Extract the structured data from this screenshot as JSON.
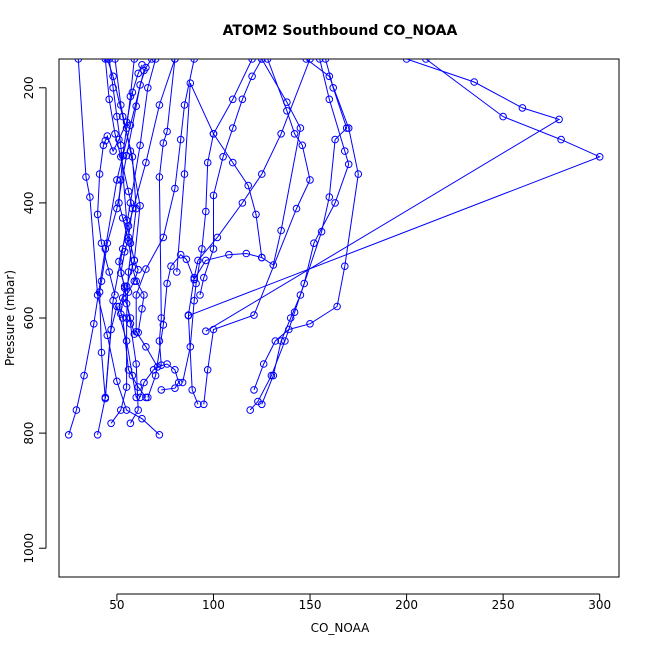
{
  "chart_data": {
    "type": "line",
    "title": "ATOM2 Southbound CO_NOAA",
    "xlabel": "CO_NOAA",
    "ylabel": "Pressure (mbar)",
    "xlim": [
      20,
      310
    ],
    "ylim": [
      1050,
      150
    ],
    "y_reversed": true,
    "grid": false,
    "x_ticks": [
      50,
      100,
      150,
      200,
      250,
      300
    ],
    "y_ticks": [
      200,
      400,
      600,
      800,
      1000
    ],
    "series_color": "#0000ff",
    "marker": "open-circle",
    "profiles": [
      [
        [
          25,
          803
        ],
        [
          29,
          760
        ],
        [
          33,
          700
        ],
        [
          38,
          610
        ],
        [
          44,
          480
        ],
        [
          50,
          360
        ],
        [
          57,
          265
        ],
        [
          64,
          170
        ],
        [
          68,
          150
        ]
      ],
      [
        [
          40,
          803
        ],
        [
          44,
          738
        ],
        [
          48,
          570
        ],
        [
          53,
          480
        ],
        [
          57,
          400
        ],
        [
          62,
          300
        ],
        [
          66,
          200
        ],
        [
          70,
          150
        ]
      ],
      [
        [
          72,
          803
        ],
        [
          63,
          775
        ],
        [
          55,
          760
        ],
        [
          50,
          710
        ],
        [
          45,
          630
        ],
        [
          40,
          560
        ],
        [
          36,
          390
        ],
        [
          34,
          355
        ],
        [
          30,
          150
        ]
      ],
      [
        [
          47,
          783
        ],
        [
          52,
          760
        ],
        [
          55,
          720
        ],
        [
          55,
          600
        ],
        [
          56,
          520
        ],
        [
          60,
          410
        ],
        [
          58,
          320
        ],
        [
          53,
          250
        ],
        [
          48,
          180
        ],
        [
          45,
          150
        ]
      ],
      [
        [
          57,
          783
        ],
        [
          61,
          760
        ],
        [
          60,
          680
        ],
        [
          57,
          610
        ],
        [
          54,
          548
        ],
        [
          51,
          502
        ],
        [
          56,
          440
        ],
        [
          65,
          330
        ],
        [
          72,
          230
        ],
        [
          80,
          150
        ]
      ],
      [
        [
          65,
          738
        ],
        [
          61,
          720
        ],
        [
          56,
          690
        ],
        [
          53,
          600
        ],
        [
          51,
          580
        ],
        [
          55,
          545
        ],
        [
          59,
          500
        ],
        [
          62,
          405
        ],
        [
          57,
          310
        ],
        [
          52,
          230
        ],
        [
          49,
          150
        ]
      ],
      [
        [
          73,
          725
        ],
        [
          80,
          722
        ],
        [
          82,
          712
        ],
        [
          80,
          690
        ],
        [
          76,
          680
        ],
        [
          71,
          685
        ],
        [
          65,
          650
        ],
        [
          60,
          624
        ],
        [
          60,
          560
        ],
        [
          65,
          515
        ],
        [
          74,
          460
        ],
        [
          80,
          375
        ],
        [
          83,
          290
        ],
        [
          85,
          230
        ],
        [
          90,
          150
        ]
      ],
      [
        [
          92,
          750
        ],
        [
          89,
          725
        ],
        [
          87,
          595
        ],
        [
          90,
          530
        ],
        [
          92,
          500
        ],
        [
          102,
          460
        ],
        [
          115,
          400
        ],
        [
          125,
          350
        ],
        [
          135,
          280
        ],
        [
          150,
          150
        ]
      ],
      [
        [
          95,
          750
        ],
        [
          97,
          690
        ],
        [
          100,
          620
        ],
        [
          121,
          595
        ],
        [
          143,
          410
        ],
        [
          150,
          360
        ],
        [
          146,
          300
        ],
        [
          142,
          280
        ],
        [
          138,
          240
        ],
        [
          128,
          150
        ]
      ],
      [
        [
          119,
          760
        ],
        [
          123,
          745
        ],
        [
          130,
          700
        ],
        [
          137,
          640
        ],
        [
          142,
          590
        ],
        [
          147,
          540
        ],
        [
          152,
          470
        ],
        [
          163,
          400
        ],
        [
          170,
          333
        ],
        [
          168,
          310
        ],
        [
          160,
          220
        ],
        [
          155,
          150
        ]
      ],
      [
        [
          125,
          750
        ],
        [
          131,
          700
        ],
        [
          135,
          640
        ],
        [
          140,
          600
        ],
        [
          145,
          560
        ],
        [
          156,
          450
        ],
        [
          160,
          390
        ],
        [
          163,
          290
        ],
        [
          169,
          270
        ],
        [
          162,
          200
        ],
        [
          158,
          150
        ]
      ],
      [
        [
          121,
          725
        ],
        [
          126,
          680
        ],
        [
          132,
          640
        ],
        [
          139,
          620
        ],
        [
          150,
          610
        ],
        [
          164,
          580
        ],
        [
          168,
          510
        ],
        [
          175,
          350
        ],
        [
          170,
          270
        ],
        [
          160,
          180
        ],
        [
          148,
          150
        ]
      ],
      [
        [
          90,
          533
        ],
        [
          96,
          500
        ],
        [
          108,
          490
        ],
        [
          117,
          488
        ],
        [
          125,
          495
        ],
        [
          131,
          508
        ],
        [
          135,
          448
        ],
        [
          145,
          270
        ],
        [
          138,
          225
        ],
        [
          125,
          150
        ]
      ],
      [
        [
          96,
          623
        ],
        [
          279,
          255
        ],
        [
          260,
          235
        ],
        [
          235,
          190
        ],
        [
          200,
          150
        ]
      ],
      [
        [
          87,
          596
        ],
        [
          300,
          320
        ],
        [
          280,
          290
        ],
        [
          250,
          250
        ],
        [
          210,
          150
        ]
      ],
      [
        [
          81,
          520
        ],
        [
          85,
          350
        ],
        [
          88,
          192
        ],
        [
          100,
          280
        ],
        [
          110,
          330
        ],
        [
          118,
          370
        ],
        [
          122,
          420
        ],
        [
          125,
          495
        ]
      ],
      [
        [
          66,
          738
        ],
        [
          70,
          700
        ],
        [
          74,
          612
        ],
        [
          76,
          540
        ],
        [
          78,
          510
        ],
        [
          83,
          490
        ],
        [
          86,
          498
        ],
        [
          90,
          533
        ]
      ],
      [
        [
          62,
          738
        ],
        [
          64,
          712
        ],
        [
          69,
          690
        ],
        [
          73,
          682
        ],
        [
          72,
          640
        ],
        [
          73,
          600
        ],
        [
          72,
          355
        ],
        [
          74,
          296
        ],
        [
          76,
          276
        ],
        [
          80,
          150
        ]
      ],
      [
        [
          60,
          738
        ],
        [
          58,
          700
        ],
        [
          55,
          640
        ],
        [
          50,
          580
        ],
        [
          47,
          620
        ],
        [
          44,
          740
        ],
        [
          42,
          660
        ],
        [
          41,
          555
        ],
        [
          42,
          536
        ],
        [
          45,
          470
        ],
        [
          50,
          410
        ],
        [
          55,
          318
        ],
        [
          60,
          232
        ],
        [
          62,
          195
        ],
        [
          65,
          165
        ]
      ],
      [
        [
          49,
          560
        ],
        [
          46,
          520
        ],
        [
          42,
          470
        ],
        [
          40,
          420
        ],
        [
          41,
          350
        ],
        [
          43,
          300
        ],
        [
          44,
          292
        ],
        [
          45,
          284
        ],
        [
          48,
          310
        ],
        [
          51,
          290
        ],
        [
          55,
          260
        ],
        [
          58,
          208
        ],
        [
          61,
          175
        ],
        [
          63,
          160
        ]
      ],
      [
        [
          52,
          593
        ],
        [
          54,
          545
        ],
        [
          52,
          522
        ],
        [
          54,
          485
        ],
        [
          56,
          460
        ],
        [
          58,
          410
        ],
        [
          56,
          380
        ],
        [
          52,
          320
        ],
        [
          49,
          280
        ],
        [
          46,
          220
        ],
        [
          44,
          150
        ]
      ],
      [
        [
          59,
          628
        ],
        [
          57,
          600
        ],
        [
          55,
          575
        ],
        [
          53,
          565
        ],
        [
          56,
          555
        ],
        [
          59,
          536
        ],
        [
          61,
          516
        ],
        [
          59,
          500
        ],
        [
          57,
          470
        ],
        [
          55,
          430
        ],
        [
          52,
          300
        ],
        [
          50,
          250
        ],
        [
          48,
          200
        ],
        [
          46,
          150
        ]
      ],
      [
        [
          61,
          625
        ],
        [
          63,
          584
        ],
        [
          64,
          560
        ],
        [
          60,
          536
        ],
        [
          58,
          512
        ],
        [
          56,
          466
        ],
        [
          53,
          426
        ],
        [
          51,
          400
        ],
        [
          52,
          360
        ],
        [
          53,
          318
        ],
        [
          55,
          270
        ],
        [
          57,
          215
        ],
        [
          59,
          150
        ]
      ],
      [
        [
          84,
          712
        ],
        [
          88,
          650
        ],
        [
          90,
          570
        ],
        [
          91,
          540
        ],
        [
          94,
          480
        ],
        [
          96,
          415
        ],
        [
          97,
          330
        ],
        [
          100,
          280
        ],
        [
          110,
          220
        ],
        [
          120,
          150
        ]
      ],
      [
        [
          93,
          560
        ],
        [
          95,
          530
        ],
        [
          100,
          480
        ],
        [
          100,
          387
        ],
        [
          105,
          320
        ],
        [
          110,
          270
        ],
        [
          115,
          220
        ],
        [
          120,
          180
        ],
        [
          125,
          150
        ]
      ]
    ]
  }
}
